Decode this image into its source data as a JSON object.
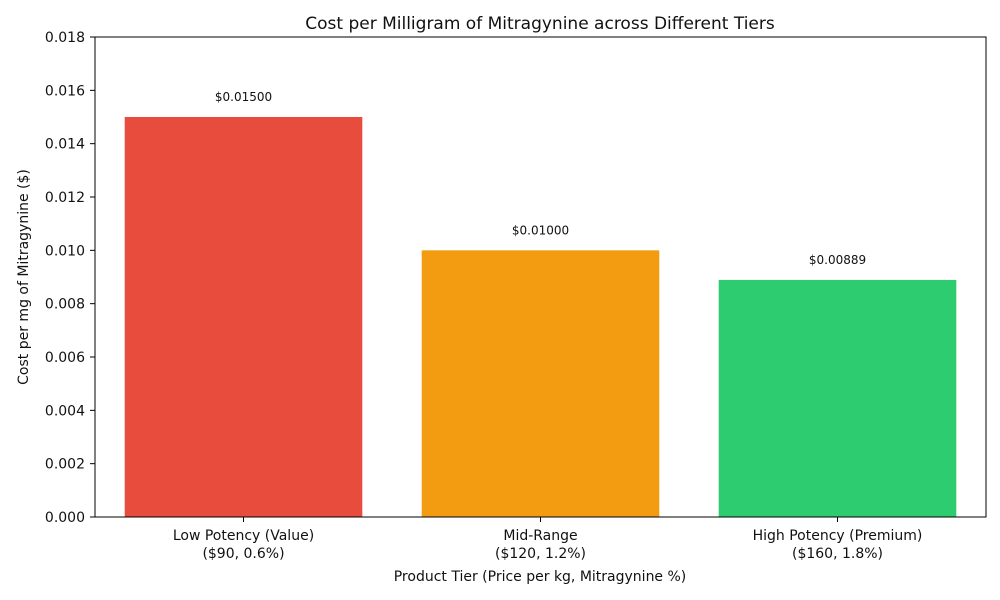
{
  "chart_data": {
    "type": "bar",
    "title": "Cost per Milligram of Mitragynine across Different Tiers",
    "xlabel": "Product Tier (Price per kg, Mitragynine %)",
    "ylabel": "Cost per mg of Mitragynine ($)",
    "ylim": [
      0,
      0.018
    ],
    "yticks": [
      0,
      0.002,
      0.004,
      0.006,
      0.008,
      0.01,
      0.012,
      0.014,
      0.016,
      0.018
    ],
    "ytick_labels": [
      "0.000",
      "0.002",
      "0.004",
      "0.006",
      "0.008",
      "0.010",
      "0.012",
      "0.014",
      "0.016",
      "0.018"
    ],
    "categories": [
      [
        "Low Potency (Value)",
        "($90, 0.6%)"
      ],
      [
        "Mid-Range",
        "($120, 1.2%)"
      ],
      [
        "High Potency (Premium)",
        "($160, 1.8%)"
      ]
    ],
    "values": [
      0.015,
      0.01,
      0.00889
    ],
    "value_labels": [
      "$0.01500",
      "$0.01000",
      "$0.00889"
    ],
    "colors": [
      "#e74c3c",
      "#f39c12",
      "#2ecc71"
    ],
    "grid": false,
    "legend": false
  }
}
